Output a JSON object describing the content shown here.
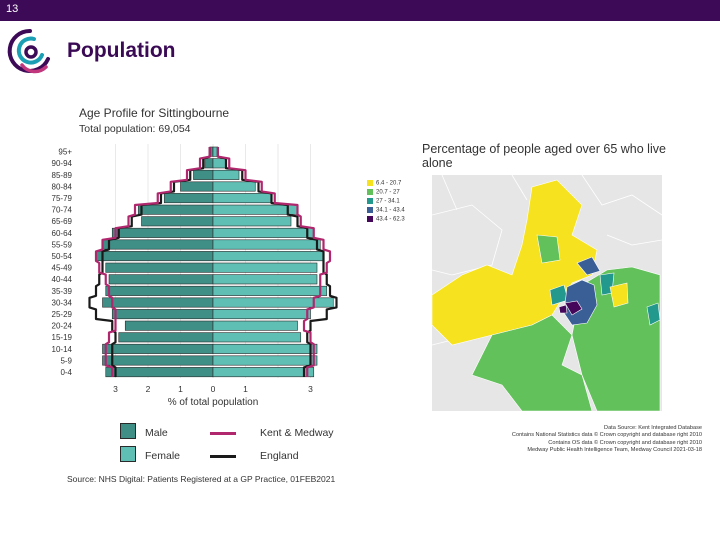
{
  "slide": {
    "number": "13",
    "title": "Population",
    "colors": {
      "topbar": "#3d0a57",
      "title": "#3a0a55"
    }
  },
  "chart_data": [
    {
      "type": "bar",
      "orientation": "horizontal",
      "title": "Age Profile for Sittingbourne",
      "subtitle": "Total population: 69,054",
      "xlabel": "% of total population",
      "x_ticks": [
        "3",
        "2",
        "1",
        "0",
        "1",
        "3"
      ],
      "xlim": [
        -3.5,
        3.5
      ],
      "categories": [
        "0-4",
        "5-9",
        "10-14",
        "15-19",
        "20-24",
        "25-29",
        "30-34",
        "35-39",
        "40-44",
        "45-49",
        "50-54",
        "55-59",
        "60-64",
        "65-69",
        "70-74",
        "75-79",
        "80-84",
        "85-89",
        "90-94",
        "95+"
      ],
      "series": [
        {
          "name": "Male",
          "side": "left",
          "color": "#3f8f87",
          "values": [
            3.3,
            3.4,
            3.4,
            2.9,
            2.7,
            3.1,
            3.4,
            3.3,
            3.2,
            3.3,
            3.6,
            3.4,
            3.1,
            2.2,
            2.3,
            1.5,
            1.0,
            0.6,
            0.25,
            0.1
          ]
        },
        {
          "name": "Female",
          "side": "right",
          "color": "#5fbfb4",
          "values": [
            3.1,
            3.2,
            3.2,
            2.7,
            2.6,
            3.0,
            3.7,
            3.5,
            3.2,
            3.2,
            3.4,
            3.3,
            3.1,
            2.4,
            2.6,
            1.8,
            1.3,
            0.8,
            0.4,
            0.15
          ]
        },
        {
          "name": "Kent & Medway",
          "type": "line",
          "color": "#b0276e",
          "left": [
            3.1,
            3.3,
            3.3,
            3.2,
            3.0,
            3.0,
            3.1,
            3.2,
            3.3,
            3.5,
            3.6,
            3.4,
            3.0,
            2.6,
            2.4,
            1.7,
            1.3,
            0.8,
            0.4,
            0.1
          ],
          "right": [
            2.9,
            3.1,
            3.1,
            3.0,
            2.8,
            2.9,
            3.1,
            3.3,
            3.3,
            3.5,
            3.6,
            3.4,
            3.1,
            2.7,
            2.6,
            1.9,
            1.5,
            1.0,
            0.5,
            0.15
          ]
        },
        {
          "name": "England",
          "type": "line",
          "color": "#1a1a1a",
          "left": [
            3.0,
            3.1,
            3.1,
            3.0,
            3.1,
            3.6,
            3.8,
            3.6,
            3.5,
            3.4,
            3.4,
            3.2,
            2.9,
            2.5,
            2.2,
            1.6,
            1.2,
            0.7,
            0.3,
            0.1
          ],
          "right": [
            2.8,
            3.0,
            3.0,
            2.9,
            3.0,
            3.5,
            3.8,
            3.6,
            3.5,
            3.4,
            3.4,
            3.2,
            2.9,
            2.6,
            2.3,
            1.8,
            1.4,
            0.9,
            0.4,
            0.15
          ]
        }
      ],
      "legend": {
        "placement": "bottom",
        "items": [
          {
            "label": "Male",
            "kind": "box",
            "color": "#3f8f87"
          },
          {
            "label": "Kent & Medway",
            "kind": "line",
            "color": "#b0276e"
          },
          {
            "label": "Female",
            "kind": "box",
            "color": "#5fbfb4"
          },
          {
            "label": "England",
            "kind": "line",
            "color": "#1a1a1a"
          }
        ]
      },
      "source": "Source: NHS Digital: Patients Registered at a GP Practice, 01FEB2021"
    },
    {
      "type": "choropleth-map",
      "title": "Percentage of people aged over 65 who live alone",
      "legend": [
        {
          "label": "6.4 - 20.7",
          "color": "#f6e21e"
        },
        {
          "label": "20.7 - 27",
          "color": "#62c15a"
        },
        {
          "label": "27 - 34.1",
          "color": "#22998c"
        },
        {
          "label": "34.1 - 43.4",
          "color": "#3a5e96"
        },
        {
          "label": "43.4 - 62.3",
          "color": "#44075a"
        }
      ],
      "credits": [
        "Data Source: Kent Integrated Database",
        "Contains National Statistics data © Crown copyright and database right 2010",
        "Contains OS data © Crown copyright and database right 2010",
        "Medway Public Health Intelligence Team, Medway Council 2021-03-18"
      ]
    }
  ]
}
